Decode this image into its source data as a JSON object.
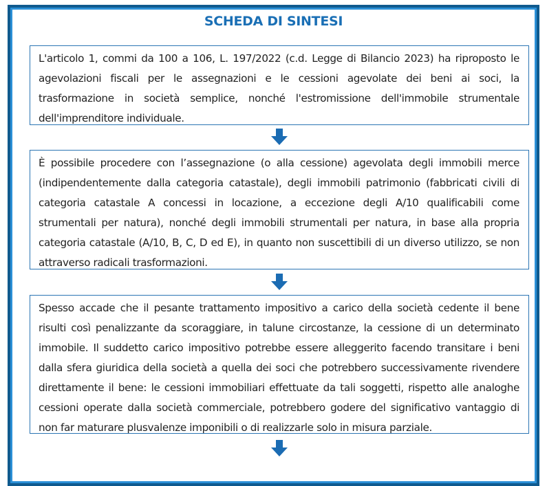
{
  "title": "SCHEDA DI SINTESI",
  "boxes": [
    "L'articolo 1, commi da 100 a 106, L. 197/2022 (c.d. Legge di Bilancio 2023) ha riproposto le agevolazioni fiscali per le assegnazioni e le cessioni agevolate dei beni ai soci, la trasformazione in società semplice, nonché l'estromissione dell'immobile strumentale dell'imprenditore individuale.",
    "È possibile procedere con l’assegnazione (o alla cessione) agevolata degli immobili merce (indipendentemente dalla categoria catastale), degli immobili patrimonio (fabbricati civili di categoria catastale A concessi in locazione, a eccezione degli A/10 qualificabili come strumentali per natura), nonché degli immobili strumentali per natura, in base alla propria categoria catastale (A/10, B, C, D ed E), in quanto non suscettibili di un diverso utilizzo, se non attraverso radicali trasformazioni.",
    "Spesso accade che il pesante trattamento impositivo a carico della società cedente il bene risulti così penalizzante da scoraggiare, in talune circostanze, la cessione di un determinato immobile. Il suddetto carico impositivo potrebbe essere alleggerito facendo transitare i beni dalla sfera giuridica della società a quella dei soci che potrebbero successivamente rivendere direttamente il bene: le cessioni immobiliari effettuate da tali soggetti, rispetto alle analoghe cessioni operate dalla società commerciale, potrebbero godere del significativo vantaggio di non far maturare plusvalenze imponibili o di realizzarle solo in misura parziale."
  ],
  "colors": {
    "accent": "#1a6fb5",
    "frame": "#0f5a8e",
    "arrow": "#1b6cb3"
  },
  "icons": [
    "arrow-down-icon"
  ]
}
